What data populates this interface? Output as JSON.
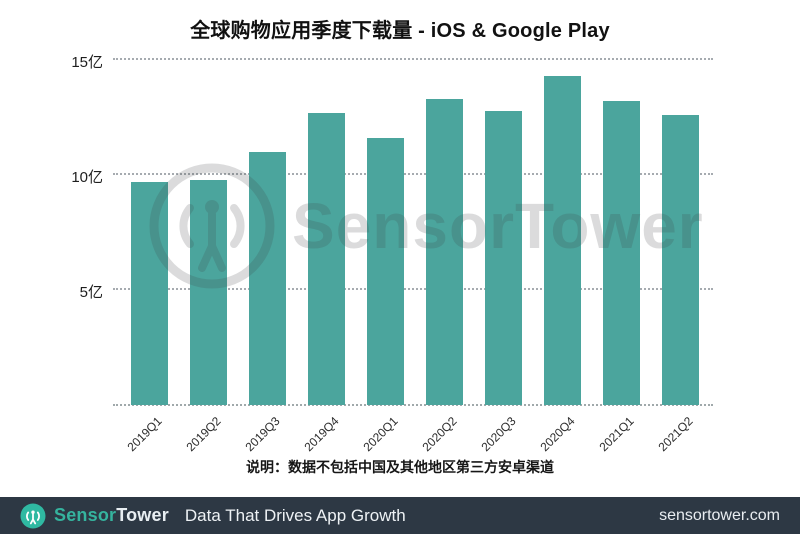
{
  "title": "全球购物应用季度下载量 - iOS & Google Play",
  "chart_data": {
    "type": "bar",
    "categories": [
      "2019Q1",
      "2019Q2",
      "2019Q3",
      "2019Q4",
      "2020Q1",
      "2020Q2",
      "2020Q3",
      "2020Q4",
      "2021Q1",
      "2021Q2"
    ],
    "values": [
      9.7,
      9.8,
      11.0,
      12.7,
      11.6,
      13.3,
      12.8,
      14.3,
      13.2,
      12.6
    ],
    "unit": "亿",
    "title": "全球购物应用季度下载量 - iOS & Google Play",
    "xlabel": "",
    "ylabel": "",
    "ylim": [
      0,
      15
    ],
    "y_ticks": [
      5,
      10,
      15
    ],
    "y_tick_labels": [
      "5亿",
      "10亿",
      "15亿"
    ],
    "grid": "horizontal-dotted",
    "legend": "none",
    "bar_color": "#4ba59d"
  },
  "watermark": {
    "text": "SensorTower"
  },
  "note": "说明：数据不包括中国及其他地区第三方安卓渠道",
  "footer": {
    "brand_sensor": "Sensor",
    "brand_tower": "Tower",
    "tagline": "Data That Drives App Growth",
    "website": "sensortower.com",
    "bg_color": "#2d3844",
    "accent_color": "#35b39e",
    "tower_color": "#e8eef2"
  }
}
